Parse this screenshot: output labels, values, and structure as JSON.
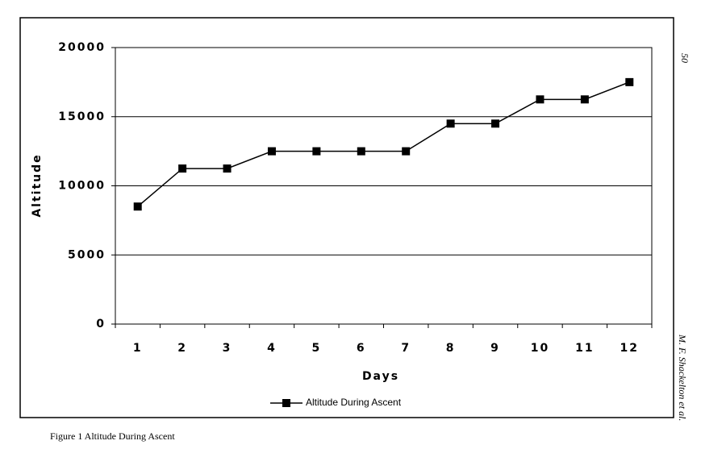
{
  "chart_data": {
    "type": "line",
    "x_label": "Days",
    "y_label": "Altitude",
    "categories": [
      "1",
      "2",
      "3",
      "4",
      "5",
      "6",
      "7",
      "8",
      "9",
      "10",
      "11",
      "12"
    ],
    "series": [
      {
        "name": "Altitude During Ascent",
        "color": "#000000",
        "values": [
          8500,
          11250,
          11250,
          12500,
          12500,
          12500,
          12500,
          14500,
          14500,
          16250,
          16250,
          17500
        ]
      }
    ],
    "ylim": [
      0,
      20000
    ],
    "yticks": [
      0,
      5000,
      10000,
      15000,
      20000
    ],
    "grid": true,
    "legend": "bottom"
  },
  "caption": "Figure 1 Altitude During Ascent",
  "page_number": "50",
  "running_author": "M. F. Shackelton et al."
}
